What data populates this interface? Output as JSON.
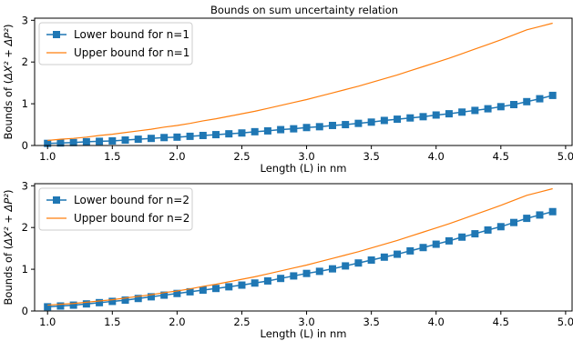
{
  "figure": {
    "title": "Bounds on sum uncertainty relation"
  },
  "colors": {
    "lower": "#1f77b4",
    "upper": "#ff7f0e",
    "axes": "#000000",
    "background": "#ffffff",
    "legend_border": "#cccccc"
  },
  "chart_data": [
    {
      "type": "line",
      "title": "Bounds on sum uncertainty relation",
      "xlabel": "Length (L) in nm",
      "ylabel_prefix": "Bounds of (",
      "ylabel_math": "ΔX² + ΔP²",
      "ylabel_suffix": ")",
      "xlim": [
        0.9,
        5.05
      ],
      "ylim": [
        0,
        3.05
      ],
      "xticks": [
        "1.0",
        "1.5",
        "2.0",
        "2.5",
        "3.0",
        "3.5",
        "4.0",
        "4.5",
        "5.0"
      ],
      "yticks": [
        "0",
        "1",
        "2",
        "3"
      ],
      "grid": false,
      "legend": "top-left",
      "series": [
        {
          "name": "Lower bound for n=1",
          "style": "line-with-square-markers",
          "x": [
            1.0,
            1.1,
            1.2,
            1.3,
            1.4,
            1.5,
            1.6,
            1.7,
            1.8,
            1.9,
            2.0,
            2.1,
            2.2,
            2.3,
            2.4,
            2.5,
            2.6,
            2.7,
            2.8,
            2.9,
            3.0,
            3.1,
            3.2,
            3.3,
            3.4,
            3.5,
            3.6,
            3.7,
            3.8,
            3.9,
            4.0,
            4.1,
            4.2,
            4.3,
            4.4,
            4.5,
            4.6,
            4.7,
            4.8,
            4.9
          ],
          "y": [
            0.05,
            0.06,
            0.07,
            0.09,
            0.1,
            0.11,
            0.13,
            0.15,
            0.17,
            0.19,
            0.2,
            0.22,
            0.24,
            0.26,
            0.28,
            0.3,
            0.33,
            0.35,
            0.38,
            0.4,
            0.43,
            0.45,
            0.48,
            0.5,
            0.53,
            0.56,
            0.6,
            0.63,
            0.66,
            0.69,
            0.73,
            0.76,
            0.8,
            0.84,
            0.88,
            0.93,
            0.98,
            1.05,
            1.12,
            1.2
          ]
        },
        {
          "name": "Upper bound for n=1",
          "style": "line",
          "x": [
            1.0,
            1.1,
            1.2,
            1.3,
            1.4,
            1.5,
            1.6,
            1.7,
            1.8,
            1.9,
            2.0,
            2.1,
            2.2,
            2.3,
            2.4,
            2.5,
            2.6,
            2.7,
            2.8,
            2.9,
            3.0,
            3.1,
            3.2,
            3.3,
            3.4,
            3.5,
            3.6,
            3.7,
            3.8,
            3.9,
            4.0,
            4.1,
            4.2,
            4.3,
            4.4,
            4.5,
            4.6,
            4.7,
            4.8,
            4.9
          ],
          "y": [
            0.12,
            0.15,
            0.17,
            0.2,
            0.24,
            0.27,
            0.31,
            0.35,
            0.39,
            0.44,
            0.48,
            0.53,
            0.59,
            0.64,
            0.7,
            0.76,
            0.82,
            0.89,
            0.96,
            1.03,
            1.1,
            1.18,
            1.26,
            1.34,
            1.42,
            1.51,
            1.6,
            1.69,
            1.79,
            1.89,
            1.99,
            2.09,
            2.2,
            2.31,
            2.42,
            2.53,
            2.65,
            2.77,
            2.85,
            2.93
          ]
        }
      ]
    },
    {
      "type": "line",
      "title": "",
      "xlabel": "Length (L) in nm",
      "ylabel_prefix": "Bounds of (",
      "ylabel_math": "ΔX² + ΔP²",
      "ylabel_suffix": ")",
      "xlim": [
        0.9,
        5.05
      ],
      "ylim": [
        0,
        3.05
      ],
      "xticks": [
        "1.0",
        "1.5",
        "2.0",
        "2.5",
        "3.0",
        "3.5",
        "4.0",
        "4.5",
        "5.0"
      ],
      "yticks": [
        "0",
        "1",
        "2",
        "3"
      ],
      "grid": false,
      "legend": "top-left",
      "series": [
        {
          "name": "Lower bound for n=2",
          "style": "line-with-square-markers",
          "x": [
            1.0,
            1.1,
            1.2,
            1.3,
            1.4,
            1.5,
            1.6,
            1.7,
            1.8,
            1.9,
            2.0,
            2.1,
            2.2,
            2.3,
            2.4,
            2.5,
            2.6,
            2.7,
            2.8,
            2.9,
            3.0,
            3.1,
            3.2,
            3.3,
            3.4,
            3.5,
            3.6,
            3.7,
            3.8,
            3.9,
            4.0,
            4.1,
            4.2,
            4.3,
            4.4,
            4.5,
            4.6,
            4.7,
            4.8,
            4.9
          ],
          "y": [
            0.1,
            0.12,
            0.14,
            0.17,
            0.2,
            0.23,
            0.26,
            0.3,
            0.34,
            0.38,
            0.42,
            0.46,
            0.5,
            0.54,
            0.58,
            0.62,
            0.67,
            0.72,
            0.78,
            0.84,
            0.9,
            0.95,
            1.01,
            1.08,
            1.15,
            1.22,
            1.29,
            1.36,
            1.44,
            1.52,
            1.6,
            1.68,
            1.77,
            1.85,
            1.94,
            2.02,
            2.12,
            2.22,
            2.3,
            2.38
          ]
        },
        {
          "name": "Upper bound for n=2",
          "style": "line",
          "x": [
            1.0,
            1.1,
            1.2,
            1.3,
            1.4,
            1.5,
            1.6,
            1.7,
            1.8,
            1.9,
            2.0,
            2.1,
            2.2,
            2.3,
            2.4,
            2.5,
            2.6,
            2.7,
            2.8,
            2.9,
            3.0,
            3.1,
            3.2,
            3.3,
            3.4,
            3.5,
            3.6,
            3.7,
            3.8,
            3.9,
            4.0,
            4.1,
            4.2,
            4.3,
            4.4,
            4.5,
            4.6,
            4.7,
            4.8,
            4.9
          ],
          "y": [
            0.14,
            0.16,
            0.18,
            0.21,
            0.24,
            0.27,
            0.31,
            0.35,
            0.39,
            0.44,
            0.48,
            0.53,
            0.59,
            0.64,
            0.7,
            0.76,
            0.82,
            0.89,
            0.96,
            1.03,
            1.1,
            1.18,
            1.26,
            1.34,
            1.42,
            1.51,
            1.6,
            1.69,
            1.79,
            1.89,
            1.99,
            2.09,
            2.2,
            2.31,
            2.42,
            2.53,
            2.65,
            2.77,
            2.85,
            2.93
          ]
        }
      ]
    }
  ]
}
